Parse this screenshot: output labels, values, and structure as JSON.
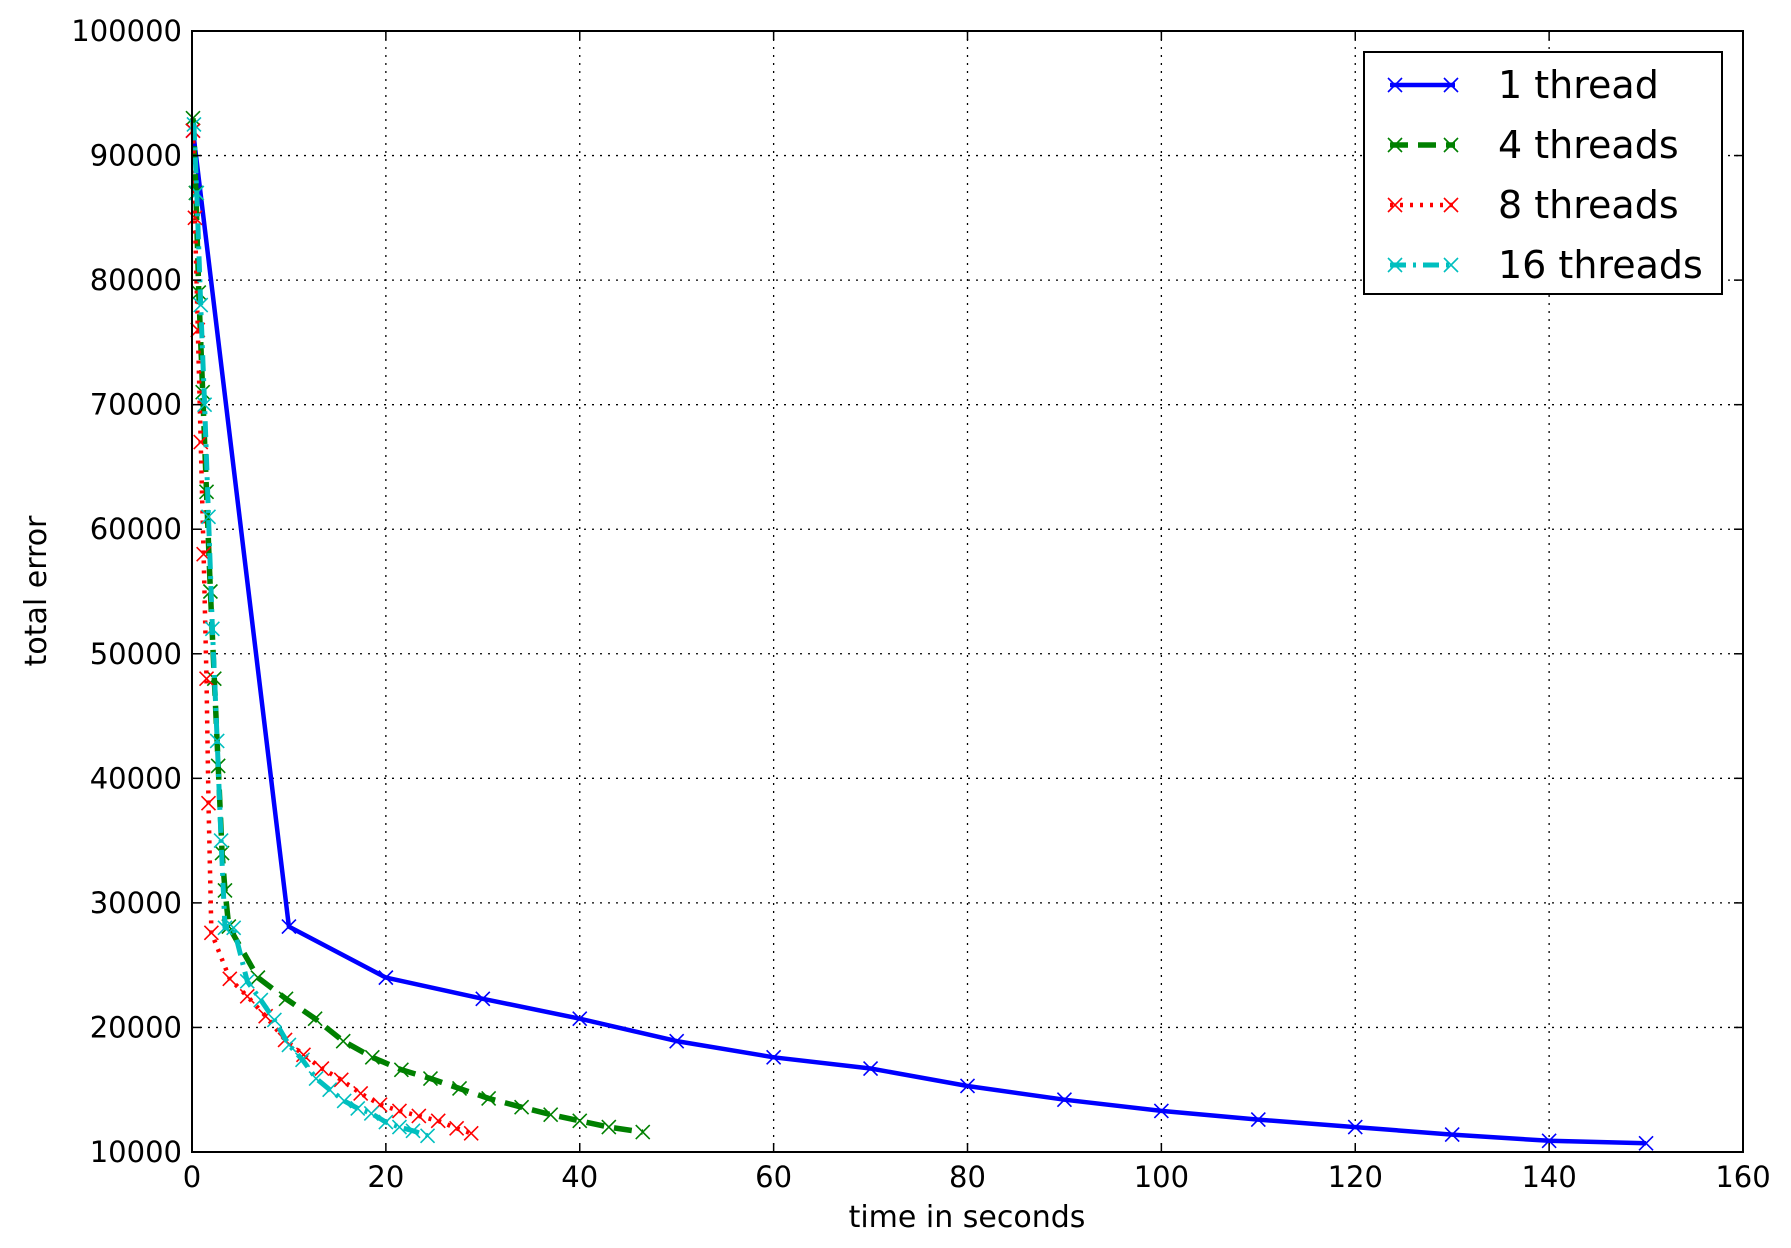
{
  "chart_data": {
    "type": "line",
    "title": "",
    "xlabel": "time in seconds",
    "ylabel": "total error",
    "xlim": [
      0,
      160
    ],
    "ylim": [
      10000,
      100000
    ],
    "xticks": [
      "0",
      "20",
      "40",
      "60",
      "80",
      "100",
      "120",
      "140",
      "160"
    ],
    "yticks": [
      "10000",
      "20000",
      "30000",
      "40000",
      "50000",
      "60000",
      "70000",
      "80000",
      "90000",
      "100000"
    ],
    "grid": true,
    "legend_position": "top-right",
    "series": [
      {
        "name": "1 thread",
        "color": "#0000ff",
        "line_style": "solid",
        "marker": "x",
        "x": [
          0.1,
          10,
          20,
          30,
          40,
          50,
          60,
          70,
          80,
          90,
          100,
          110,
          120,
          130,
          140,
          150
        ],
        "y": [
          92000,
          28100,
          24000,
          22300,
          20700,
          18900,
          17600,
          16700,
          15300,
          14200,
          13300,
          12600,
          12000,
          11400,
          10900,
          10700
        ]
      },
      {
        "name": "4 threads",
        "color": "#008000",
        "line_style": "dashed",
        "marker": "x",
        "x": [
          0.1,
          0.4,
          0.7,
          1.1,
          1.5,
          1.9,
          2.3,
          2.7,
          3.1,
          3.4,
          3.8,
          6.8,
          9.7,
          12.7,
          15.6,
          18.6,
          21.6,
          24.6,
          27.6,
          30.6,
          34,
          37,
          40,
          43,
          46.5
        ],
        "y": [
          93000,
          87000,
          79000,
          71000,
          63000,
          55000,
          48000,
          41000,
          34000,
          31000,
          28100,
          24000,
          22300,
          20700,
          18900,
          17600,
          16600,
          15900,
          15100,
          14300,
          13600,
          13000,
          12500,
          12000,
          11600
        ]
      },
      {
        "name": "8 threads",
        "color": "#ff0000",
        "line_style": "dotted",
        "marker": "x",
        "x": [
          0.1,
          0.3,
          0.6,
          0.9,
          1.2,
          1.5,
          1.7,
          2,
          3.9,
          5.7,
          7.6,
          9.6,
          11.5,
          13.4,
          15.4,
          17.4,
          19.4,
          21.4,
          23.4,
          25.4,
          27.3,
          28.8
        ],
        "y": [
          92000,
          85000,
          76000,
          67000,
          58000,
          48000,
          38000,
          27600,
          23900,
          22500,
          20900,
          19000,
          17800,
          16700,
          15800,
          14700,
          13800,
          13300,
          12900,
          12500,
          11900,
          11500
        ]
      },
      {
        "name": "16 threads",
        "color": "#00bfbf",
        "line_style": "dashdot",
        "marker": "x",
        "x": [
          0.2,
          0.5,
          0.9,
          1.3,
          1.7,
          2.1,
          2.6,
          3,
          3.4,
          4.3,
          5.7,
          7.1,
          8.5,
          10,
          11.4,
          12.8,
          14.2,
          15.7,
          17.1,
          18.5,
          20,
          21.4,
          22.8,
          24.3
        ],
        "y": [
          92500,
          87000,
          78000,
          70000,
          61000,
          52000,
          43000,
          35000,
          28000,
          28000,
          23700,
          22200,
          20600,
          18600,
          17400,
          15900,
          15000,
          14100,
          13500,
          13100,
          12400,
          12000,
          11700,
          11300
        ]
      }
    ]
  }
}
